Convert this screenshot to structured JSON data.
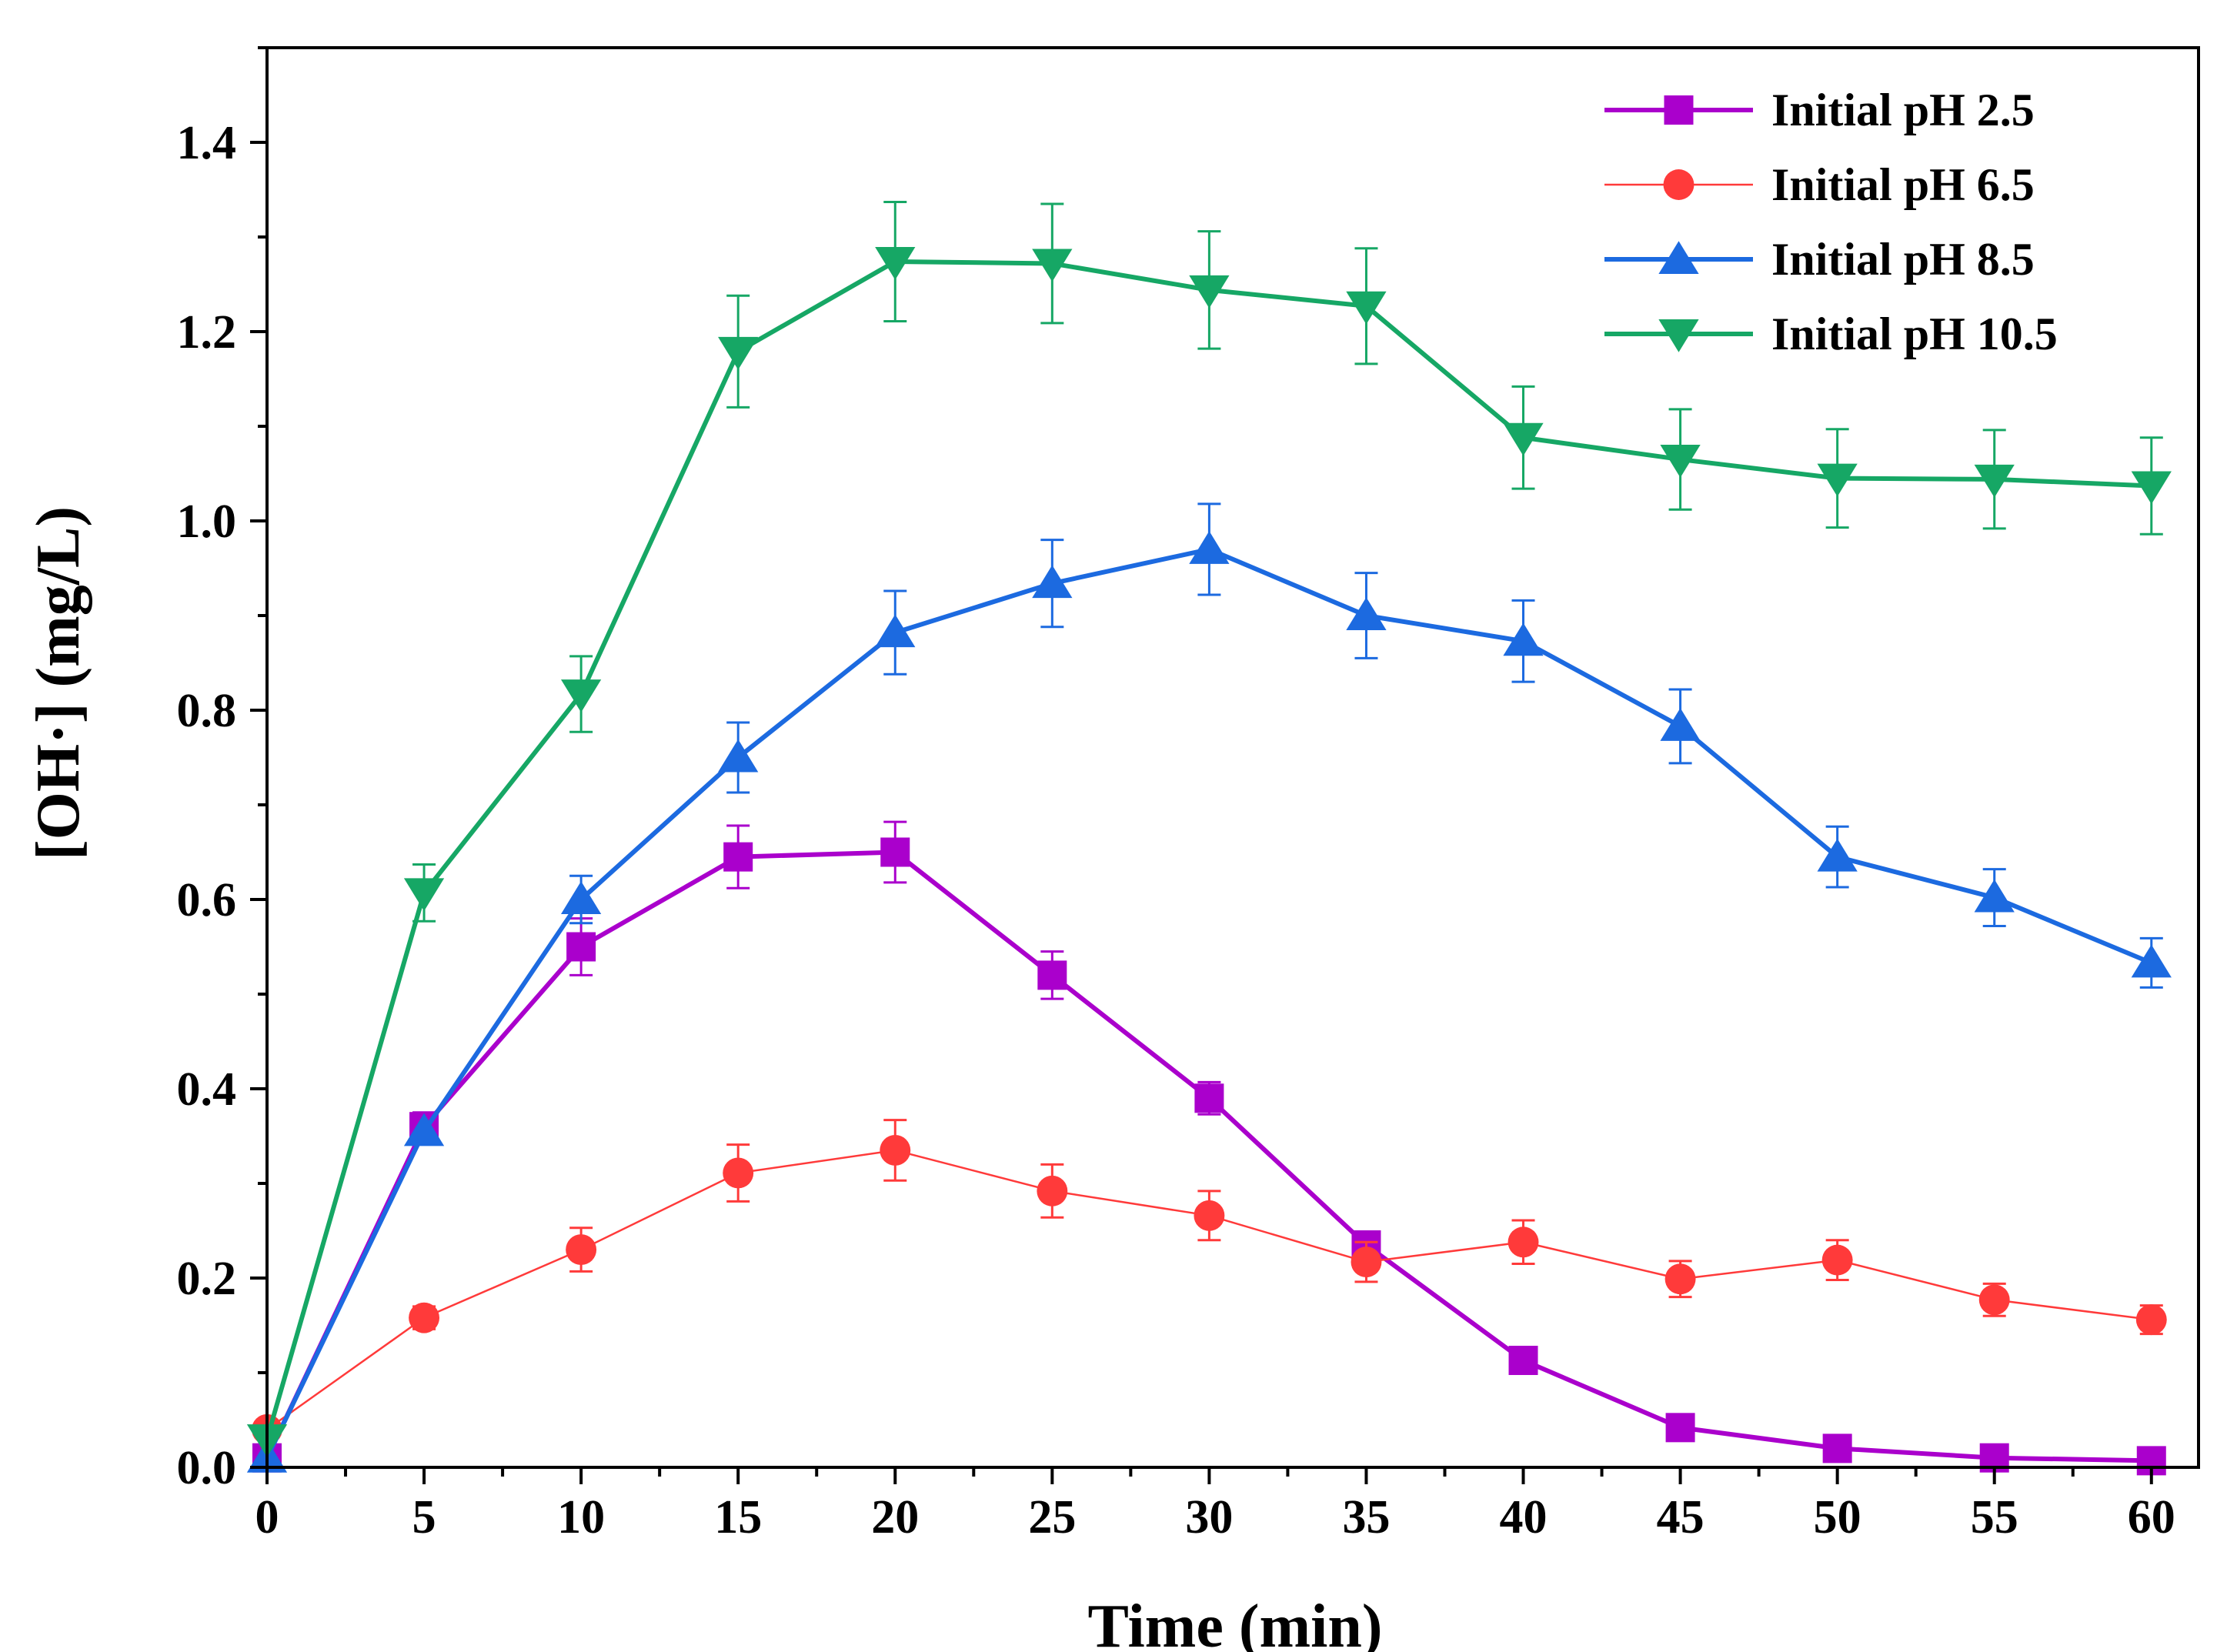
{
  "chart_data": {
    "type": "line",
    "title": "",
    "xlabel": "Time (min)",
    "ylabel": "[OH·] (mg/L)",
    "xlim": [
      0,
      61.5
    ],
    "ylim": [
      0,
      1.5
    ],
    "xticks": [
      0,
      5,
      10,
      15,
      20,
      25,
      30,
      35,
      40,
      45,
      50,
      55,
      60
    ],
    "xtick_labels": [
      "0",
      "5",
      "10",
      "15",
      "20",
      "25",
      "30",
      "35",
      "40",
      "45",
      "50",
      "55",
      "60"
    ],
    "yticks": [
      0,
      0.2,
      0.4,
      0.6,
      0.8,
      1.0,
      1.2,
      1.4
    ],
    "ytick_labels": [
      "0.0",
      "0.2",
      "0.4",
      "0.6",
      "0.8",
      "1.0",
      "1.2",
      "1.4"
    ],
    "legend_position": "top-right",
    "x": [
      0,
      5,
      10,
      15,
      20,
      25,
      30,
      35,
      40,
      45,
      50,
      55,
      60
    ],
    "series": [
      {
        "name": "Initial pH 2.5",
        "color": "#AA00CC",
        "marker": "square",
        "values": [
          0.01,
          0.36,
          0.55,
          0.645,
          0.65,
          0.52,
          0.39,
          0.235,
          0.113,
          0.042,
          0.02,
          0.01,
          0.007
        ],
        "errors": [
          0.0,
          0.015,
          0.03,
          0.033,
          0.032,
          0.025,
          0.017,
          0.01,
          0.0,
          0.0,
          0.0,
          0.0,
          0.0
        ]
      },
      {
        "name": "Initial pH 6.5",
        "color": "#FF3A3A",
        "marker": "circle",
        "values": [
          0.04,
          0.158,
          0.23,
          0.311,
          0.335,
          0.292,
          0.266,
          0.217,
          0.238,
          0.199,
          0.219,
          0.177,
          0.156
        ],
        "errors": [
          0.0,
          0.012,
          0.023,
          0.03,
          0.032,
          0.028,
          0.026,
          0.021,
          0.023,
          0.019,
          0.021,
          0.017,
          0.015
        ]
      },
      {
        "name": "Initial pH 8.5",
        "color": "#1C6AE0",
        "marker": "triangle-up",
        "values": [
          0.01,
          0.355,
          0.6,
          0.75,
          0.882,
          0.934,
          0.97,
          0.9,
          0.873,
          0.783,
          0.645,
          0.602,
          0.533
        ],
        "errors": [
          0.0,
          0.0,
          0.025,
          0.037,
          0.044,
          0.046,
          0.048,
          0.045,
          0.043,
          0.039,
          0.032,
          0.03,
          0.026
        ]
      },
      {
        "name": "Initial pH 10.5",
        "color": "#16A765",
        "marker": "triangle-down",
        "values": [
          0.03,
          0.607,
          0.817,
          1.179,
          1.274,
          1.272,
          1.244,
          1.227,
          1.088,
          1.065,
          1.045,
          1.044,
          1.037
        ],
        "errors": [
          0.0,
          0.03,
          0.04,
          0.059,
          0.063,
          0.063,
          0.062,
          0.061,
          0.054,
          0.053,
          0.052,
          0.052,
          0.051
        ]
      }
    ]
  }
}
